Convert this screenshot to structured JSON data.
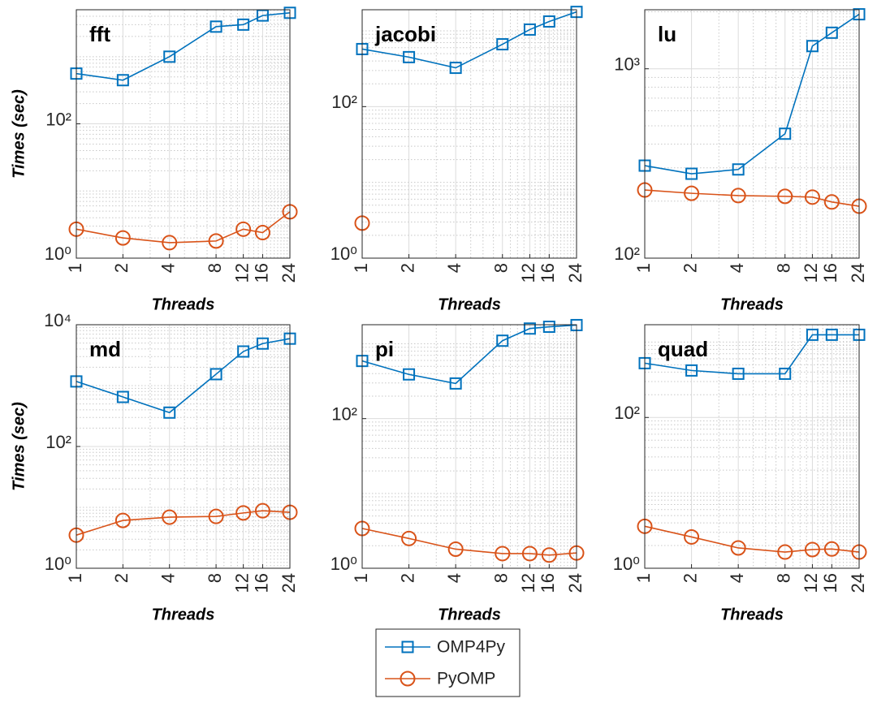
{
  "chart_data": [
    {
      "type": "line",
      "title": "fft",
      "xlabel": "Threads",
      "ylabel": "Times (sec)",
      "log_y": true,
      "log_x": true,
      "grid": true,
      "x": [
        1,
        2,
        4,
        8,
        12,
        16,
        24
      ],
      "xlim": [
        1,
        24
      ],
      "xticks": [
        1,
        2,
        4,
        8,
        12,
        16,
        24
      ],
      "ylim": [
        1,
        5000
      ],
      "yticks": [
        {
          "value": 1,
          "label": "10⁰"
        },
        {
          "value": 100,
          "label": "10²"
        }
      ],
      "series": [
        {
          "name": "OMP4Py",
          "color": "#0072BD",
          "marker": "square",
          "values": [
            560,
            447,
            1000,
            2800,
            3000,
            4100,
            4500
          ]
        },
        {
          "name": "PyOMP",
          "color": "#D95319",
          "marker": "circle",
          "values": [
            2.7,
            2.0,
            1.7,
            1.8,
            2.7,
            2.4,
            4.9
          ]
        }
      ]
    },
    {
      "type": "line",
      "title": "jacobi",
      "xlabel": "Threads",
      "log_y": true,
      "log_x": true,
      "grid": true,
      "x": [
        1,
        2,
        4,
        8,
        12,
        16,
        24
      ],
      "xlim": [
        1,
        24
      ],
      "xticks": [
        1,
        2,
        4,
        8,
        12,
        16,
        24
      ],
      "ylim": [
        1,
        1900
      ],
      "yticks": [
        {
          "value": 1,
          "label": "10⁰"
        },
        {
          "value": 100,
          "label": "10²"
        }
      ],
      "series": [
        {
          "color": "#0072BD",
          "marker": "square",
          "values": [
            575,
            450,
            325,
            665,
            1040,
            1330,
            1780
          ]
        },
        {
          "color": "#D95319",
          "marker": "circle",
          "values": [
            2.9,
            null,
            null,
            null,
            null,
            null,
            null
          ]
        }
      ]
    },
    {
      "type": "line",
      "title": "lu",
      "xlabel": "Threads",
      "log_y": true,
      "log_x": true,
      "grid": true,
      "x": [
        1,
        2,
        4,
        8,
        12,
        16,
        24
      ],
      "xlim": [
        1,
        24
      ],
      "xticks": [
        1,
        2,
        4,
        8,
        12,
        16,
        24
      ],
      "ylim": [
        100,
        2050
      ],
      "yticks": [
        {
          "value": 100,
          "label": "10²"
        },
        {
          "value": 1000,
          "label": "10³"
        }
      ],
      "series": [
        {
          "color": "#0072BD",
          "marker": "square",
          "values": [
            308,
            279,
            294,
            454,
            1318,
            1550,
            1940
          ]
        },
        {
          "color": "#D95319",
          "marker": "circle",
          "values": [
            229,
            220,
            214,
            212,
            210,
            198,
            188
          ]
        }
      ]
    },
    {
      "type": "line",
      "title": "md",
      "xlabel": "Threads",
      "ylabel": "Times (sec)",
      "log_y": true,
      "log_x": true,
      "grid": true,
      "x": [
        1,
        2,
        4,
        8,
        12,
        16,
        24
      ],
      "xlim": [
        1,
        24
      ],
      "xticks": [
        1,
        2,
        4,
        8,
        12,
        16,
        24
      ],
      "ylim": [
        1,
        10000
      ],
      "yticks": [
        {
          "value": 1,
          "label": "10⁰"
        },
        {
          "value": 100,
          "label": "10²"
        },
        {
          "value": 10000,
          "label": "10⁴"
        }
      ],
      "series": [
        {
          "color": "#0072BD",
          "marker": "square",
          "values": [
            1170,
            650,
            360,
            1540,
            3630,
            4900,
            5900
          ]
        },
        {
          "color": "#D95319",
          "marker": "circle",
          "values": [
            3.5,
            6.1,
            6.9,
            7.1,
            8.1,
            8.8,
            8.3
          ]
        }
      ]
    },
    {
      "type": "line",
      "title": "pi",
      "xlabel": "Threads",
      "log_y": true,
      "log_x": true,
      "grid": true,
      "x": [
        1,
        2,
        4,
        8,
        12,
        16,
        24
      ],
      "xlim": [
        1,
        24
      ],
      "xticks": [
        1,
        2,
        4,
        8,
        12,
        16,
        24
      ],
      "ylim": [
        1,
        1800
      ],
      "yticks": [
        {
          "value": 1,
          "label": "10⁰"
        },
        {
          "value": 100,
          "label": "10²"
        }
      ],
      "series": [
        {
          "color": "#0072BD",
          "marker": "square",
          "values": [
            590,
            390,
            295,
            1100,
            1600,
            1690,
            1780
          ]
        },
        {
          "color": "#D95319",
          "marker": "circle",
          "values": [
            3.4,
            2.5,
            1.8,
            1.57,
            1.57,
            1.5,
            1.6
          ]
        }
      ]
    },
    {
      "type": "line",
      "title": "quad",
      "xlabel": "Threads",
      "log_y": true,
      "log_x": true,
      "grid": true,
      "x": [
        1,
        2,
        4,
        8,
        12,
        16,
        24
      ],
      "xlim": [
        1,
        24
      ],
      "xticks": [
        1,
        2,
        4,
        8,
        12,
        16,
        24
      ],
      "ylim": [
        1,
        1700
      ],
      "yticks": [
        {
          "value": 1,
          "label": "10⁰"
        },
        {
          "value": 100,
          "label": "10²"
        }
      ],
      "series": [
        {
          "color": "#0072BD",
          "marker": "square",
          "values": [
            525,
            420,
            380,
            380,
            1250,
            1250,
            1250
          ]
        },
        {
          "color": "#D95319",
          "marker": "circle",
          "values": [
            3.6,
            2.6,
            1.86,
            1.64,
            1.77,
            1.8,
            1.64
          ]
        }
      ]
    }
  ]
}
